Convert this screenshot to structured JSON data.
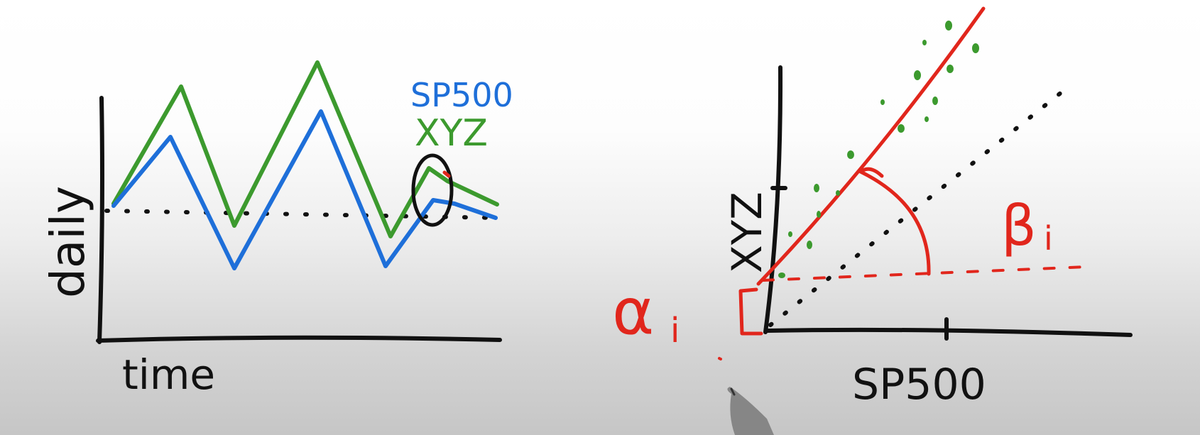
{
  "colors": {
    "ink": "#111111",
    "sp500": "#1e6fd9",
    "xyz": "#3c9a2e",
    "red": "#e1261c",
    "green_dots": "#3c9a2e",
    "background_top": "#ffffff",
    "background_bottom": "#c6c6c6"
  },
  "left_plot": {
    "xlabel": "time",
    "ylabel": "daily",
    "legend": {
      "sp500": "SP500",
      "xyz": "XYZ"
    }
  },
  "right_plot": {
    "xlabel": "SP500",
    "ylabel": "XYZ",
    "alpha_label": "α",
    "alpha_sub": "i",
    "beta_label": "β",
    "beta_sub": "i"
  },
  "icons": {
    "pen": "pen-tip-icon"
  }
}
